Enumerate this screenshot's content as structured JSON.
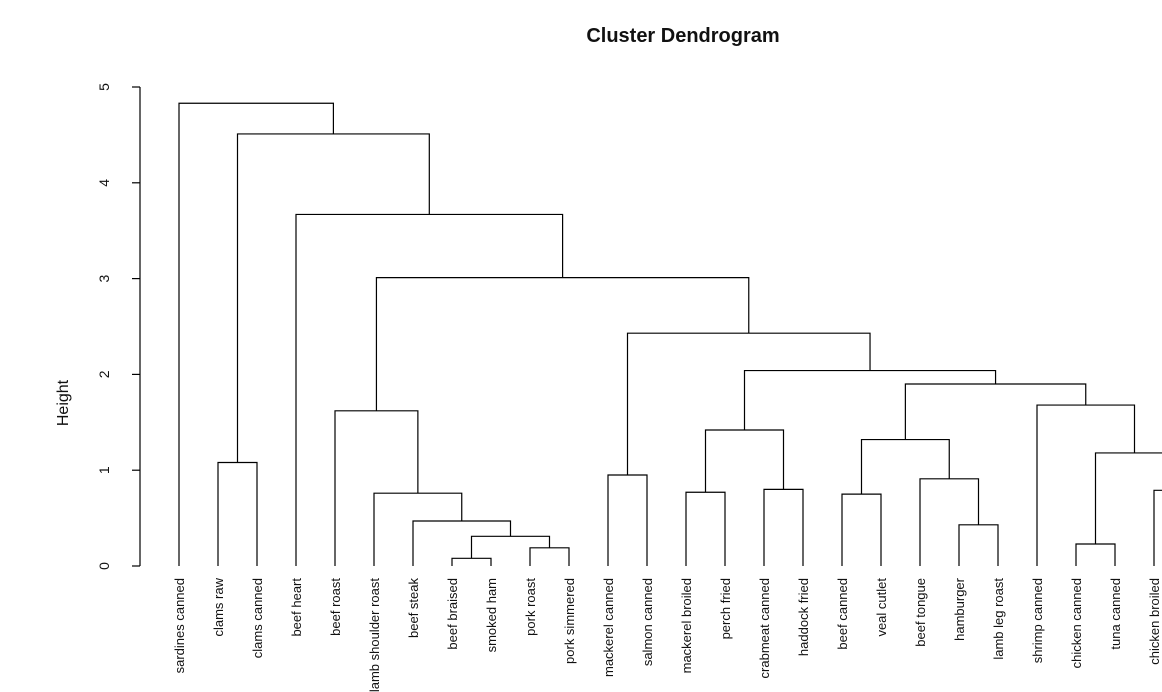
{
  "chart_data": {
    "type": "dendrogram",
    "title": "Cluster Dendrogram",
    "ylabel": "Height",
    "labels": [
      "sardines canned",
      "clams raw",
      "clams canned",
      "beef heart",
      "beef roast",
      "lamb shoulder roast",
      "beef steak",
      "beef braised",
      "smoked ham",
      "pork roast",
      "pork simmered",
      "mackerel canned",
      "salmon canned",
      "mackerel broiled",
      "perch fried",
      "crabmeat canned",
      "haddock fried",
      "beef canned",
      "veal cutlet",
      "beef tongue",
      "hamburger",
      "lamb leg roast",
      "shrimp canned",
      "chicken canned",
      "tuna canned",
      "chicken broiled",
      null
    ],
    "merge": [
      [
        -8,
        -9
      ],
      [
        -10,
        -11
      ],
      [
        -24,
        -25
      ],
      [
        1,
        2
      ],
      [
        -21,
        -22
      ],
      [
        -7,
        4
      ],
      [
        -18,
        -19
      ],
      [
        -6,
        6
      ],
      [
        -14,
        -15
      ],
      [
        -26,
        -27
      ],
      [
        -16,
        -17
      ],
      [
        -20,
        5
      ],
      [
        -12,
        -13
      ],
      [
        -2,
        -3
      ],
      [
        3,
        10
      ],
      [
        7,
        12
      ],
      [
        9,
        11
      ],
      [
        -5,
        8
      ],
      [
        -23,
        15
      ],
      [
        16,
        19
      ],
      [
        17,
        20
      ],
      [
        13,
        21
      ],
      [
        18,
        22
      ],
      [
        -4,
        23
      ],
      [
        14,
        24
      ],
      [
        -1,
        25
      ]
    ],
    "height": [
      0.08,
      0.19,
      0.23,
      0.31,
      0.43,
      0.47,
      0.75,
      0.76,
      0.77,
      0.79,
      0.8,
      0.91,
      0.95,
      1.08,
      1.18,
      1.32,
      1.42,
      1.62,
      1.68,
      1.9,
      2.04,
      2.43,
      3.01,
      3.67,
      4.51,
      4.83
    ],
    "ylim": [
      0,
      5
    ],
    "yticks": [
      0,
      1,
      2,
      3,
      4,
      5
    ]
  }
}
